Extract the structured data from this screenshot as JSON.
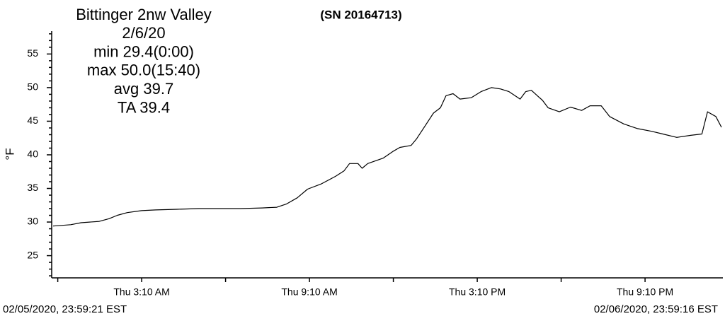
{
  "chart_data": {
    "type": "line",
    "title": [
      "Bittinger 2nw Valley",
      "2/6/20",
      "min 29.4(0:00)",
      "max 50.0(15:40)",
      "avg  39.7",
      "TA 39.4"
    ],
    "serial": "(SN 20164713)",
    "y_label": "°F",
    "start_label": "02/05/2020, 23:59:21 EST",
    "end_label": "02/06/2020, 23:59:16 EST",
    "xlim": [
      0,
      24
    ],
    "xticks": [
      {
        "value": 3.1667,
        "label": "Thu 3:10 AM"
      },
      {
        "value": 9.1667,
        "label": "Thu 9:10 AM"
      },
      {
        "value": 15.1667,
        "label": "Thu 3:10 PM"
      },
      {
        "value": 21.1667,
        "label": "Thu 9:10 PM"
      }
    ],
    "xminorticks": [
      0.1667,
      6.1667,
      12.1667,
      18.1667
    ],
    "ylim": [
      21.8,
      58.3
    ],
    "yticks": [
      25,
      30,
      35,
      40,
      45,
      50,
      55
    ],
    "yminorticks": [
      22,
      23,
      24,
      26,
      27,
      28,
      29,
      31,
      32,
      33,
      34,
      36,
      37,
      38,
      39,
      41,
      42,
      43,
      44,
      46,
      47,
      48,
      49,
      51,
      52,
      53,
      54,
      56,
      57,
      58
    ],
    "grid": false,
    "series": [
      {
        "color": "#000000",
        "x": [
          0,
          0.63,
          1.0,
          1.65,
          2.0,
          2.3,
          2.65,
          3.17,
          3.67,
          4.43,
          5.2,
          5.95,
          6.7,
          7.47,
          8.0,
          8.35,
          8.73,
          9.1,
          9.6,
          10.1,
          10.4,
          10.6,
          10.9,
          11.05,
          11.25,
          11.8,
          12.15,
          12.4,
          12.8,
          13.0,
          13.3,
          13.6,
          13.85,
          14.05,
          14.3,
          14.55,
          14.95,
          15.3,
          15.67,
          16.0,
          16.3,
          16.7,
          16.9,
          17.1,
          17.5,
          17.7,
          18.1,
          18.5,
          18.9,
          19.2,
          19.6,
          19.9,
          20.4,
          20.9,
          21.4,
          21.8,
          22.3,
          22.8,
          23.2,
          23.4,
          23.7,
          23.9
        ],
        "values": [
          29.4,
          29.6,
          29.9,
          30.1,
          30.5,
          31.0,
          31.4,
          31.7,
          31.8,
          31.9,
          32.0,
          32.0,
          32.0,
          32.1,
          32.2,
          32.7,
          33.6,
          34.9,
          35.7,
          36.8,
          37.6,
          38.7,
          38.7,
          38.0,
          38.7,
          39.5,
          40.5,
          41.1,
          41.4,
          42.4,
          44.3,
          46.2,
          47.0,
          48.8,
          49.1,
          48.3,
          48.5,
          49.4,
          50.0,
          49.8,
          49.4,
          48.3,
          49.4,
          49.6,
          48.1,
          47.0,
          46.4,
          47.1,
          46.6,
          47.3,
          47.3,
          45.7,
          44.6,
          43.9,
          43.5,
          43.1,
          42.6,
          42.9,
          43.1,
          46.4,
          45.7,
          44.1
        ]
      }
    ]
  }
}
